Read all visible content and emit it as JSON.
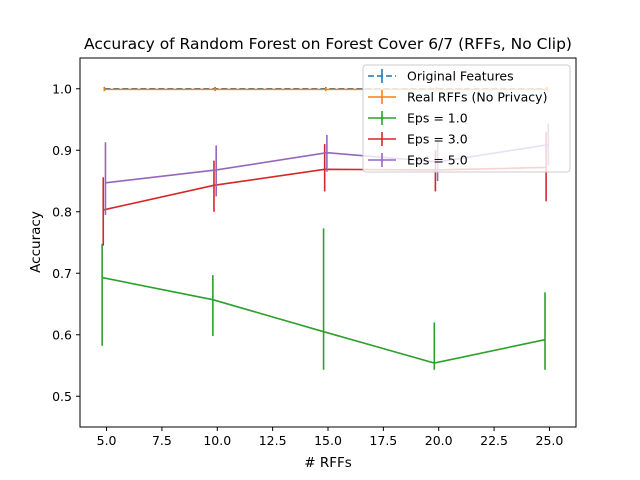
{
  "chart_data": {
    "type": "line",
    "title": "Accuracy of Random Forest on Forest Cover 6/7 (RFFs, No Clip)",
    "xlabel": "# RFFs",
    "ylabel": "Accuracy",
    "xlim": [
      3.8,
      26.2
    ],
    "ylim": [
      0.45,
      1.05
    ],
    "xticks": [
      5.0,
      7.5,
      10.0,
      12.5,
      15.0,
      17.5,
      20.0,
      22.5,
      25.0
    ],
    "xtick_labels": [
      "5.0",
      "7.5",
      "10.0",
      "12.5",
      "15.0",
      "17.5",
      "20.0",
      "22.5",
      "25.0"
    ],
    "yticks": [
      0.5,
      0.6,
      0.7,
      0.8,
      0.9,
      1.0
    ],
    "ytick_labels": [
      "0.5",
      "0.6",
      "0.7",
      "0.8",
      "0.9",
      "1.0"
    ],
    "grid": false,
    "legend_position": "top-right",
    "series": [
      {
        "name": "Original Features",
        "color": "#1f77b4",
        "dashed": true,
        "x": [
          4.9,
          9.9,
          14.9,
          19.9,
          24.9
        ],
        "y": [
          1.0,
          1.0,
          1.0,
          1.0,
          1.0
        ],
        "err_low": [
          0.997,
          0.997,
          0.997,
          0.997,
          0.997
        ],
        "err_high": [
          1.003,
          1.003,
          1.003,
          1.003,
          1.003
        ]
      },
      {
        "name": "Real RFFs (No Privacy)",
        "color": "#ff7f0e",
        "dashed": false,
        "x": [
          4.9,
          9.9,
          14.9,
          19.9,
          24.9
        ],
        "y": [
          0.999,
          0.999,
          0.999,
          0.999,
          0.999
        ],
        "err_low": [
          0.996,
          0.996,
          0.996,
          0.996,
          0.996
        ],
        "err_high": [
          1.002,
          1.002,
          1.002,
          1.002,
          1.002
        ]
      },
      {
        "name": "Eps = 1.0",
        "color": "#2ca02c",
        "dashed": false,
        "x": [
          4.8,
          9.8,
          14.8,
          19.8,
          24.8
        ],
        "y": [
          0.693,
          0.657,
          0.605,
          0.554,
          0.592
        ],
        "err_low": [
          0.582,
          0.598,
          0.543,
          0.543,
          0.543
        ],
        "err_high": [
          0.748,
          0.697,
          0.773,
          0.62,
          0.669
        ]
      },
      {
        "name": "Eps = 3.0",
        "color": "#d62728",
        "dashed": false,
        "x": [
          4.85,
          9.85,
          14.85,
          19.85,
          24.85
        ],
        "y": [
          0.803,
          0.843,
          0.869,
          0.868,
          0.872
        ],
        "err_low": [
          0.745,
          0.8,
          0.833,
          0.833,
          0.817
        ],
        "err_high": [
          0.856,
          0.883,
          0.91,
          0.9,
          0.93
        ]
      },
      {
        "name": "Eps = 5.0",
        "color": "#9467bd",
        "dashed": false,
        "x": [
          4.95,
          9.95,
          14.95,
          19.95,
          24.95
        ],
        "y": [
          0.847,
          0.868,
          0.896,
          0.881,
          0.909
        ],
        "err_low": [
          0.795,
          0.825,
          0.865,
          0.85,
          0.875
        ],
        "err_high": [
          0.913,
          0.908,
          0.925,
          0.915,
          0.944
        ]
      }
    ]
  }
}
